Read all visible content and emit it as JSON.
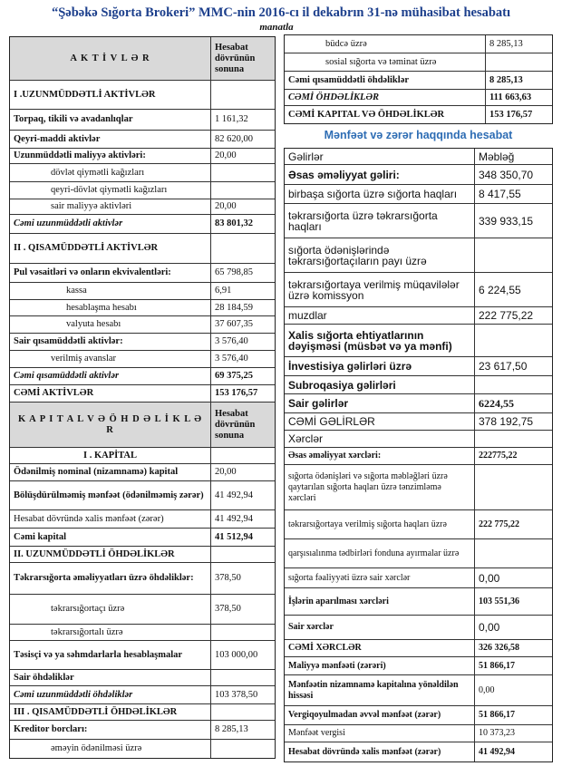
{
  "title": "“Şəbəkə Sığorta Brokeri” MMC-nin  2016-cı il dekabrın 31-nə mühasibat hesabatı",
  "subtitle": "manatla",
  "balance_left": {
    "rows": [
      {
        "label": "A K T İ V L Ə R",
        "value": "Hesabat dövrünün sonuna"
      },
      {
        "label": "I .UZUNMÜDDƏTLİ AKTİVLƏR"
      },
      {
        "label": "Torpaq, tikili və avadanlıqlar",
        "value": "1 161,32"
      },
      {
        "label": "Qeyri-maddi aktivlər",
        "value": "82 620,00"
      },
      {
        "label": "Uzunmüddətli maliyyə aktivləri:",
        "value": "20,00"
      },
      {
        "label": "dövlət qiymətli kağızları"
      },
      {
        "label": "qeyri-dövlət qiymətli kağızları"
      },
      {
        "label": "sair maliyyə aktivləri",
        "value": "20,00"
      },
      {
        "label": "Cəmi uzunmüddətli aktivlər",
        "value": "83 801,32"
      },
      {
        "label": "II . QISAMÜDDƏTLİ AKTİVLƏR"
      },
      {
        "label": "Pul vəsaitləri  və onların ekvivalentləri:",
        "value": "65 798,85"
      },
      {
        "label": "kassa",
        "value": "6,91"
      },
      {
        "label": "hesablaşma hesabı",
        "value": "28 184,59"
      },
      {
        "label": "valyuta hesabı",
        "value": "37 607,35"
      },
      {
        "label": "Sair qısamüddətli aktivlər:",
        "value": "3 576,40"
      },
      {
        "label": "verilmiş  avanslar",
        "value": "3 576,40"
      },
      {
        "label": "Cəmi qısamüddətli aktivlər",
        "value": "69 375,25"
      },
      {
        "label": "CƏMİ AKTİVLƏR",
        "value": "153 176,57"
      },
      {
        "label": "K A P I T A L  V Ə  Ö H D Ə L İ K L Ə R",
        "value": "Hesabat dövrünün sonuna"
      },
      {
        "label": "I . KAPİTAL"
      },
      {
        "label": "Ödənilmiş nominal (nizamnamə) kapital",
        "value": "20,00"
      },
      {
        "label": "Bölüşdürülməmiş mənfəət (ödənilməmiş zərər)",
        "value": "41 492,94"
      },
      {
        "label": "Hesabat dövründə xalis mənfəət (zərər)",
        "value": "41 492,94"
      },
      {
        "label": "Cəmi kapital",
        "value": "41 512,94"
      },
      {
        "label": "II. UZUNMÜDDƏTLİ ÖHDƏLİKLƏR"
      },
      {
        "label": "Təkrarsığorta əməliyyatları üzrə öhdəliklər:",
        "value": "378,50"
      },
      {
        "label": "təkrarsığortaçı üzrə",
        "value": "378,50"
      },
      {
        "label": "təkrarsığortalı üzrə"
      },
      {
        "label": "Təsisçi və ya səhmdarlarla hesablaşmalar",
        "value": "103 000,00"
      },
      {
        "label": "Sair öhdəliklər"
      },
      {
        "label": "Cəmi uzunmüddətli öhdəliklər",
        "value": "103 378,50"
      },
      {
        "label": "III . QISAMÜDDƏTLİ ÖHDƏLİKLƏR"
      },
      {
        "label": "Kreditor borcları:",
        "value": "8 285,13"
      },
      {
        "label": "əməyin ödənilməsi üzrə"
      }
    ]
  },
  "balance_right": {
    "rows": [
      {
        "label": "büdcə üzrə",
        "value": "8 285,13"
      },
      {
        "label": "sosial sığorta və təminat üzrə"
      },
      {
        "label": "Cəmi qısamüddətli öhdəliklər",
        "value": "8 285,13"
      },
      {
        "label": "CƏMİ ÖHDƏLİKLƏR",
        "value": "111 663,63"
      },
      {
        "label": "CƏMİ KAPITAL VƏ ÖHDƏLİKLƏR",
        "value": "153 176,57"
      }
    ]
  },
  "income_statement": {
    "title": "Mənfəət və zərər haqqında  hesabat",
    "rows": [
      {
        "label": "Gəlirlər",
        "value": "Məbləğ"
      },
      {
        "label": "Əsas əməliyyat gəliri:",
        "value": "348 350,70"
      },
      {
        "label": "birbaşa sığorta üzrə sığorta haqları",
        "value": "8 417,55"
      },
      {
        "label": "təkrarsığorta üzrə təkrarsığorta haqları",
        "value": "339 933,15"
      },
      {
        "label": "sığorta ödənişlərində təkrarsığortaçıların payı üzrə"
      },
      {
        "label": "təkrarsığortaya verilmiş müqavilələr üzrə komissyon",
        "value": "6 224,55"
      },
      {
        "label": "muzdlar",
        "value": "222 775,22"
      },
      {
        "label": "Xalis sığorta ehtiyatlarının dəyişməsi (müsbət və ya mənfi)"
      },
      {
        "label": "İnvestisiya gəlirləri üzrə",
        "value": "23 617,50"
      },
      {
        "label": "Subroqasiya gəlirləri"
      },
      {
        "label": "Sair gəlirlər",
        "value": "6224,55"
      },
      {
        "label": "CƏMİ  GƏLİRLƏR",
        "value": "378 192,75"
      },
      {
        "label": "Xərclər"
      },
      {
        "label": "Əsas əməliyyat xərcləri:",
        "value": "222775,22"
      },
      {
        "label": "sığorta ödənişləri və sığorta məbləğləri üzrə qaytarılan sığorta haqları üzrə tənzimləmə xərcləri"
      },
      {
        "label": "təkrarsığortaya verilmiş sığorta haqları üzrə",
        "value": "222 775,22"
      },
      {
        "label": "qarşısıalınma tədbirləri fonduna ayırmalar üzrə"
      },
      {
        "label": "sığorta fəaliyyəti üzrə sair xərclər",
        "value": "0,00"
      },
      {
        "label": "İşlərin aparılması xərcləri",
        "value": "103 551,36"
      },
      {
        "label": "Sair xərclər",
        "value": "0,00"
      },
      {
        "label": "CƏMİ  XƏRCLƏR",
        "value": "326 326,58"
      },
      {
        "label": "Maliyyə mənfəəti (zərəri)",
        "value": "51 866,17"
      },
      {
        "label": "Mənfəətin nizamnamə kapitalına yönəldilən hissəsi",
        "value": "0,00"
      },
      {
        "label": "Vergiqoyulmadan əvvəl mənfəət (zərər)",
        "value": "51 866,17"
      },
      {
        "label": "Mənfəət vergisi",
        "value": "10 373,23"
      },
      {
        "label": "Hesabat dövründə xalis mənfəət (zərər)",
        "value": "41 492,94"
      }
    ]
  }
}
